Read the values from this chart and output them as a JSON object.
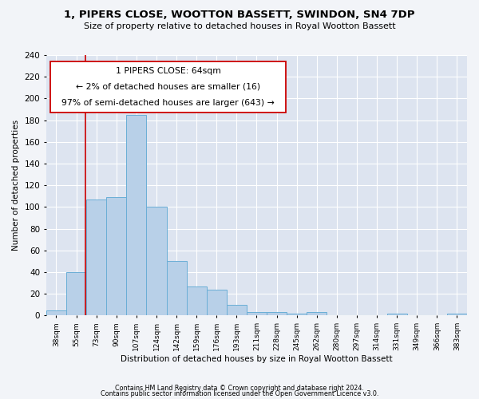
{
  "title": "1, PIPERS CLOSE, WOOTTON BASSETT, SWINDON, SN4 7DP",
  "subtitle": "Size of property relative to detached houses in Royal Wootton Bassett",
  "xlabel": "Distribution of detached houses by size in Royal Wootton Bassett",
  "ylabel": "Number of detached properties",
  "footnote1": "Contains HM Land Registry data © Crown copyright and database right 2024.",
  "footnote2": "Contains public sector information licensed under the Open Government Licence v3.0.",
  "categories": [
    "38sqm",
    "55sqm",
    "73sqm",
    "90sqm",
    "107sqm",
    "124sqm",
    "142sqm",
    "159sqm",
    "176sqm",
    "193sqm",
    "211sqm",
    "228sqm",
    "245sqm",
    "262sqm",
    "280sqm",
    "297sqm",
    "314sqm",
    "331sqm",
    "349sqm",
    "366sqm",
    "383sqm"
  ],
  "values": [
    5,
    40,
    107,
    109,
    185,
    100,
    50,
    27,
    24,
    10,
    3,
    3,
    2,
    3,
    0,
    0,
    0,
    2,
    0,
    0,
    2
  ],
  "bar_color": "#b8d0e8",
  "bar_edge_color": "#6aaed6",
  "bg_color": "#dde4f0",
  "grid_color": "#ffffff",
  "fig_bg_color": "#f2f4f8",
  "annotation_box_color": "#ffffff",
  "annotation_box_edge": "#cc0000",
  "vline_color": "#cc0000",
  "annotation_text1": "1 PIPERS CLOSE: 64sqm",
  "annotation_text2": "← 2% of detached houses are smaller (16)",
  "annotation_text3": "97% of semi-detached houses are larger (643) →",
  "vline_position": 1.45,
  "ylim": [
    0,
    240
  ],
  "yticks": [
    0,
    20,
    40,
    60,
    80,
    100,
    120,
    140,
    160,
    180,
    200,
    220,
    240
  ]
}
